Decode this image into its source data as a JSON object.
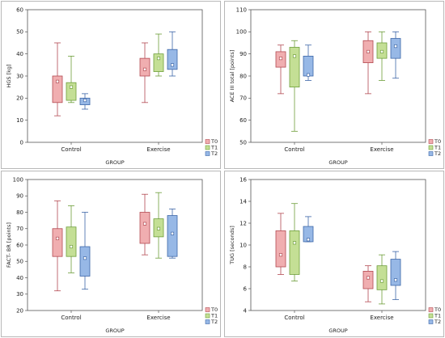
{
  "colors": {
    "T0": {
      "fill": "#f0aeb0",
      "stroke": "#b34a52"
    },
    "T1": {
      "fill": "#c4df95",
      "stroke": "#6e9e3a"
    },
    "T2": {
      "fill": "#97b8e6",
      "stroke": "#3d66a8"
    }
  },
  "chart_data": [
    {
      "type": "boxplot",
      "ylabel": "HGS [kg]",
      "xlabel": "GROUP",
      "ylim": [
        0,
        60
      ],
      "yticks": [
        0,
        10,
        20,
        30,
        40,
        50,
        60
      ],
      "categories": [
        "Control",
        "Exercise"
      ],
      "legend": [
        "T0",
        "T1",
        "T2"
      ],
      "legend_position": "bottom-right",
      "series": [
        {
          "name": "T0",
          "boxes": [
            {
              "min": 12,
              "q1": 18,
              "mean": 27.5,
              "q3": 30,
              "max": 45
            },
            {
              "min": 18,
              "q1": 30,
              "mean": 33,
              "q3": 38,
              "max": 45
            }
          ]
        },
        {
          "name": "T1",
          "boxes": [
            {
              "min": 18,
              "q1": 19,
              "mean": 25,
              "q3": 27,
              "max": 39
            },
            {
              "min": 30,
              "q1": 32,
              "mean": 38,
              "q3": 40,
              "max": 49
            }
          ]
        },
        {
          "name": "T2",
          "boxes": [
            {
              "min": 15,
              "q1": 17,
              "mean": 19,
              "q3": 20,
              "max": 22
            },
            {
              "min": 30,
              "q1": 33,
              "mean": 35,
              "q3": 42,
              "max": 50
            }
          ]
        }
      ]
    },
    {
      "type": "boxplot",
      "ylabel": "ACE III total [points]",
      "xlabel": "GROUP",
      "ylim": [
        50,
        110
      ],
      "yticks": [
        50,
        60,
        70,
        80,
        90,
        100,
        110
      ],
      "categories": [
        "Control",
        "Exercise"
      ],
      "legend": [
        "T0",
        "T1",
        "T2"
      ],
      "legend_position": "bottom-right",
      "series": [
        {
          "name": "T0",
          "boxes": [
            {
              "min": 72,
              "q1": 84,
              "mean": 88,
              "q3": 91,
              "max": 94
            },
            {
              "min": 72,
              "q1": 86,
              "mean": 91,
              "q3": 96,
              "max": 100
            }
          ]
        },
        {
          "name": "T1",
          "boxes": [
            {
              "min": 55,
              "q1": 75,
              "mean": 89,
              "q3": 93,
              "max": 96
            },
            {
              "min": 78,
              "q1": 88,
              "mean": 91,
              "q3": 95,
              "max": 100
            }
          ]
        },
        {
          "name": "T2",
          "boxes": [
            {
              "min": 78,
              "q1": 80,
              "mean": 80.5,
              "q3": 89,
              "max": 94
            },
            {
              "min": 79,
              "q1": 88,
              "mean": 93.5,
              "q3": 97,
              "max": 100
            }
          ]
        }
      ]
    },
    {
      "type": "boxplot",
      "ylabel": "FACT- BR [points]",
      "xlabel": "GROUP",
      "ylim": [
        20,
        100
      ],
      "yticks": [
        20,
        30,
        40,
        50,
        60,
        70,
        80,
        90,
        100
      ],
      "categories": [
        "Control",
        "Exercise"
      ],
      "legend": [
        "T0",
        "T1",
        "T2"
      ],
      "legend_position": "bottom-right",
      "series": [
        {
          "name": "T0",
          "boxes": [
            {
              "min": 32,
              "q1": 53,
              "mean": 64,
              "q3": 70,
              "max": 87
            },
            {
              "min": 54,
              "q1": 61,
              "mean": 73,
              "q3": 80,
              "max": 91
            }
          ]
        },
        {
          "name": "T1",
          "boxes": [
            {
              "min": 43,
              "q1": 53,
              "mean": 59,
              "q3": 71,
              "max": 84
            },
            {
              "min": 52,
              "q1": 65,
              "mean": 70,
              "q3": 76,
              "max": 92
            }
          ]
        },
        {
          "name": "T2",
          "boxes": [
            {
              "min": 33,
              "q1": 41,
              "mean": 52,
              "q3": 59,
              "max": 80
            },
            {
              "min": 52,
              "q1": 53,
              "mean": 67,
              "q3": 78,
              "max": 82
            }
          ]
        }
      ]
    },
    {
      "type": "boxplot",
      "ylabel": "TUG [seconds]",
      "xlabel": "GROUP",
      "ylim": [
        4,
        16
      ],
      "yticks": [
        4,
        6,
        8,
        10,
        12,
        14,
        16
      ],
      "categories": [
        "Control",
        "Exercise"
      ],
      "legend": [
        "T0",
        "T1",
        "T2"
      ],
      "legend_position": "bottom-right",
      "series": [
        {
          "name": "T0",
          "boxes": [
            {
              "min": 7.3,
              "q1": 8.0,
              "mean": 9.1,
              "q3": 11.3,
              "max": 12.9
            },
            {
              "min": 4.8,
              "q1": 6.0,
              "mean": 7.0,
              "q3": 7.6,
              "max": 8.1
            }
          ]
        },
        {
          "name": "T1",
          "boxes": [
            {
              "min": 6.7,
              "q1": 7.3,
              "mean": 10.2,
              "q3": 11.3,
              "max": 13.8
            },
            {
              "min": 4.6,
              "q1": 5.9,
              "mean": 6.7,
              "q3": 8.1,
              "max": 9.1
            }
          ]
        },
        {
          "name": "T2",
          "boxes": [
            {
              "min": 10.3,
              "q1": 10.3,
              "mean": 10.5,
              "q3": 11.7,
              "max": 12.6
            },
            {
              "min": 5.0,
              "q1": 6.3,
              "mean": 6.8,
              "q3": 8.7,
              "max": 9.4
            }
          ]
        }
      ]
    }
  ]
}
